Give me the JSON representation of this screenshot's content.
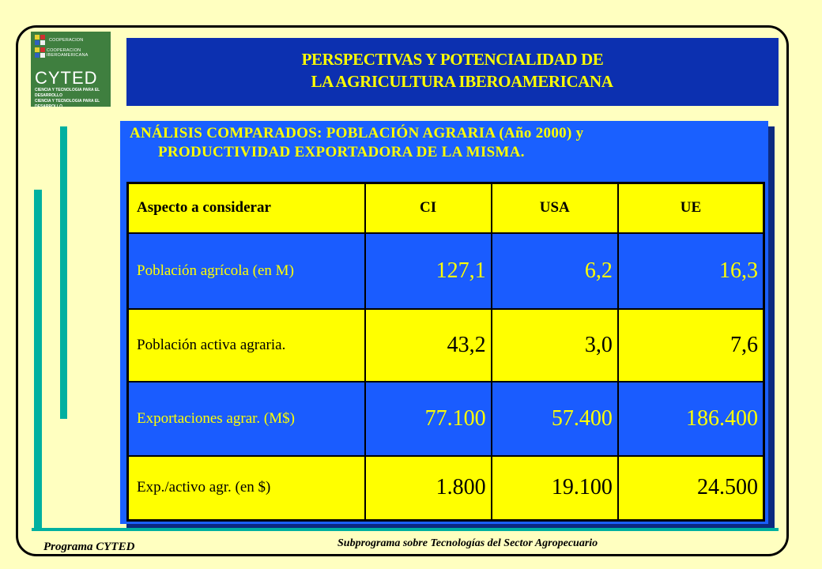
{
  "logo": {
    "lines": [
      "COOPERACION",
      "COOPERACION IBEROAMERICANA"
    ],
    "name": "CYTED",
    "tagline": [
      "CIENCIA Y TECNOLOGIA PARA EL DESARROLLO",
      "CIENCIA Y TECNOLOGIA PARA EL DESARROLLO"
    ]
  },
  "header": {
    "title_line1": "PERSPECTIVAS Y POTENCIALIDAD DE",
    "title_line2": "LA AGRICULTURA IBEROAMERICANA"
  },
  "subtitle": {
    "line1": "ANÁLISIS COMPARADOS: POBLACIÓN AGRARIA (Año 2000) y",
    "line2": "PRODUCTIVIDAD EXPORTADORA DE LA MISMA."
  },
  "table": {
    "headers": [
      "Aspecto a considerar",
      "CI",
      "USA",
      "UE"
    ],
    "rows": [
      {
        "label": "Población agrícola (en M)",
        "values": [
          "127,1",
          "6,2",
          "16,3"
        ]
      },
      {
        "label": "Población activa agraria.",
        "values": [
          "43,2",
          "3,0",
          "7,6"
        ]
      },
      {
        "label": "Exportaciones agrar.  (M$)",
        "values": [
          "77.100",
          "57.400",
          "186.400"
        ]
      },
      {
        "label": "Exp./activo agr. (en $)",
        "values": [
          "1.800",
          "19.100",
          "24.500"
        ]
      }
    ]
  },
  "footer": {
    "left": "Programa CYTED",
    "right": "Subprograma sobre Tecnologías del Sector Agropecuario"
  },
  "colors": {
    "background": "#ffffc0",
    "title_bar": "#0c30b0",
    "panel": "#1a60ff",
    "yellow": "#ffff00",
    "accent_bars": "#00b0a0"
  }
}
